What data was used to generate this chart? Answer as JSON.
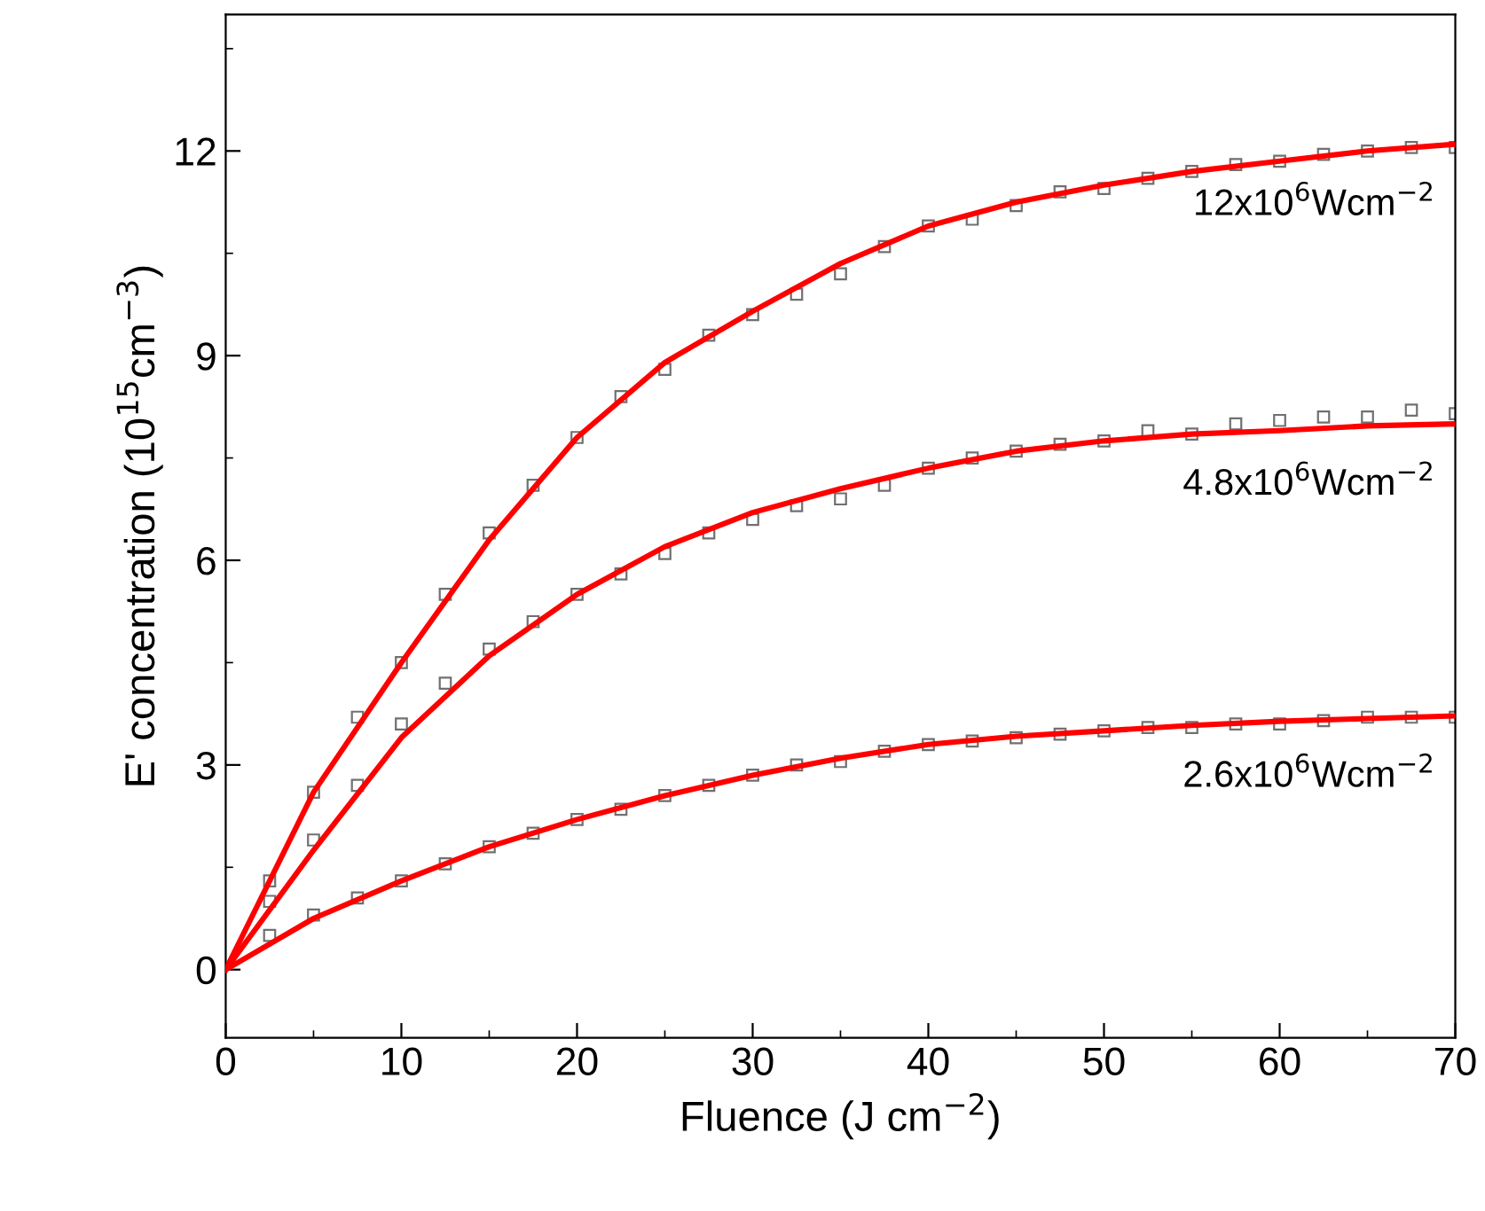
{
  "chart_data": {
    "type": "scatter",
    "xlabel": "Fluence (J cm$^{−2}$)",
    "ylabel": "E' concentration (10$^{15}$cm$^{−3}$)",
    "xlim": [
      0,
      70
    ],
    "xticks": [
      0,
      10,
      20,
      30,
      40,
      50,
      60,
      70
    ],
    "ylim": [
      -1,
      14
    ],
    "yticks": [
      0,
      3,
      6,
      9,
      12
    ],
    "grid": false,
    "legend": false,
    "series": [
      {
        "marker": "square",
        "color": "#707070",
        "x": [
          2.5,
          5,
          7.5,
          10,
          12.5,
          15,
          17.5,
          20,
          22.5,
          25,
          27.5,
          30,
          32.5,
          35,
          37.5,
          40,
          42.5,
          45,
          47.5,
          50,
          52.5,
          55,
          57.5,
          60,
          62.5,
          65,
          67.5,
          70
        ],
        "values": [
          1.3,
          2.6,
          3.7,
          4.5,
          5.5,
          6.4,
          7.1,
          7.8,
          8.4,
          8.8,
          9.3,
          9.6,
          9.9,
          10.2,
          10.6,
          10.9,
          11.0,
          11.2,
          11.4,
          11.45,
          11.6,
          11.7,
          11.8,
          11.85,
          11.95,
          12.0,
          12.05,
          12.05
        ]
      },
      {
        "marker": "square",
        "color": "#707070",
        "x": [
          2.5,
          5,
          7.5,
          10,
          12.5,
          15,
          17.5,
          20,
          22.5,
          25,
          27.5,
          30,
          32.5,
          35,
          37.5,
          40,
          42.5,
          45,
          47.5,
          50,
          52.5,
          55,
          57.5,
          60,
          62.5,
          65,
          67.5,
          70
        ],
        "values": [
          1.0,
          1.9,
          2.7,
          3.6,
          4.2,
          4.7,
          5.1,
          5.5,
          5.8,
          6.1,
          6.4,
          6.6,
          6.8,
          6.9,
          7.1,
          7.35,
          7.5,
          7.6,
          7.7,
          7.75,
          7.9,
          7.85,
          8.0,
          8.05,
          8.1,
          8.1,
          8.2,
          8.15
        ]
      },
      {
        "marker": "square",
        "color": "#707070",
        "x": [
          2.5,
          5,
          7.5,
          10,
          12.5,
          15,
          17.5,
          20,
          22.5,
          25,
          27.5,
          30,
          32.5,
          35,
          37.5,
          40,
          42.5,
          45,
          47.5,
          50,
          52.5,
          55,
          57.5,
          60,
          62.5,
          65,
          67.5,
          70
        ],
        "values": [
          0.5,
          0.8,
          1.05,
          1.3,
          1.55,
          1.8,
          2.0,
          2.2,
          2.35,
          2.55,
          2.7,
          2.85,
          3.0,
          3.05,
          3.2,
          3.3,
          3.35,
          3.4,
          3.45,
          3.5,
          3.55,
          3.55,
          3.6,
          3.6,
          3.65,
          3.7,
          3.7,
          3.7
        ]
      },
      {
        "type": "line",
        "marker": "none",
        "name": "12x10$^{6}$Wcm$^{−2}$",
        "color": "#ff0000",
        "x": [
          0,
          5,
          10,
          15,
          20,
          25,
          30,
          35,
          40,
          45,
          50,
          55,
          60,
          65,
          70
        ],
        "values": [
          0,
          2.6,
          4.5,
          6.3,
          7.8,
          8.9,
          9.65,
          10.35,
          10.9,
          11.25,
          11.5,
          11.7,
          11.85,
          12.0,
          12.1
        ]
      },
      {
        "type": "line",
        "marker": "none",
        "name": "4.8x10$^{6}$Wcm$^{−2}$",
        "color": "#ff0000",
        "x": [
          0,
          5,
          10,
          15,
          20,
          25,
          30,
          35,
          40,
          45,
          50,
          55,
          60,
          65,
          70
        ],
        "values": [
          0,
          1.75,
          3.4,
          4.6,
          5.5,
          6.2,
          6.7,
          7.05,
          7.35,
          7.6,
          7.75,
          7.85,
          7.9,
          7.97,
          8.0
        ]
      },
      {
        "type": "line",
        "marker": "none",
        "name": "2.6x10$^{6}$Wcm$^{−2}$",
        "color": "#ff0000",
        "x": [
          0,
          5,
          10,
          15,
          20,
          25,
          30,
          35,
          40,
          45,
          50,
          55,
          60,
          65,
          70
        ],
        "values": [
          0,
          0.75,
          1.3,
          1.8,
          2.2,
          2.55,
          2.85,
          3.1,
          3.3,
          3.42,
          3.5,
          3.58,
          3.64,
          3.68,
          3.72
        ]
      }
    ]
  }
}
